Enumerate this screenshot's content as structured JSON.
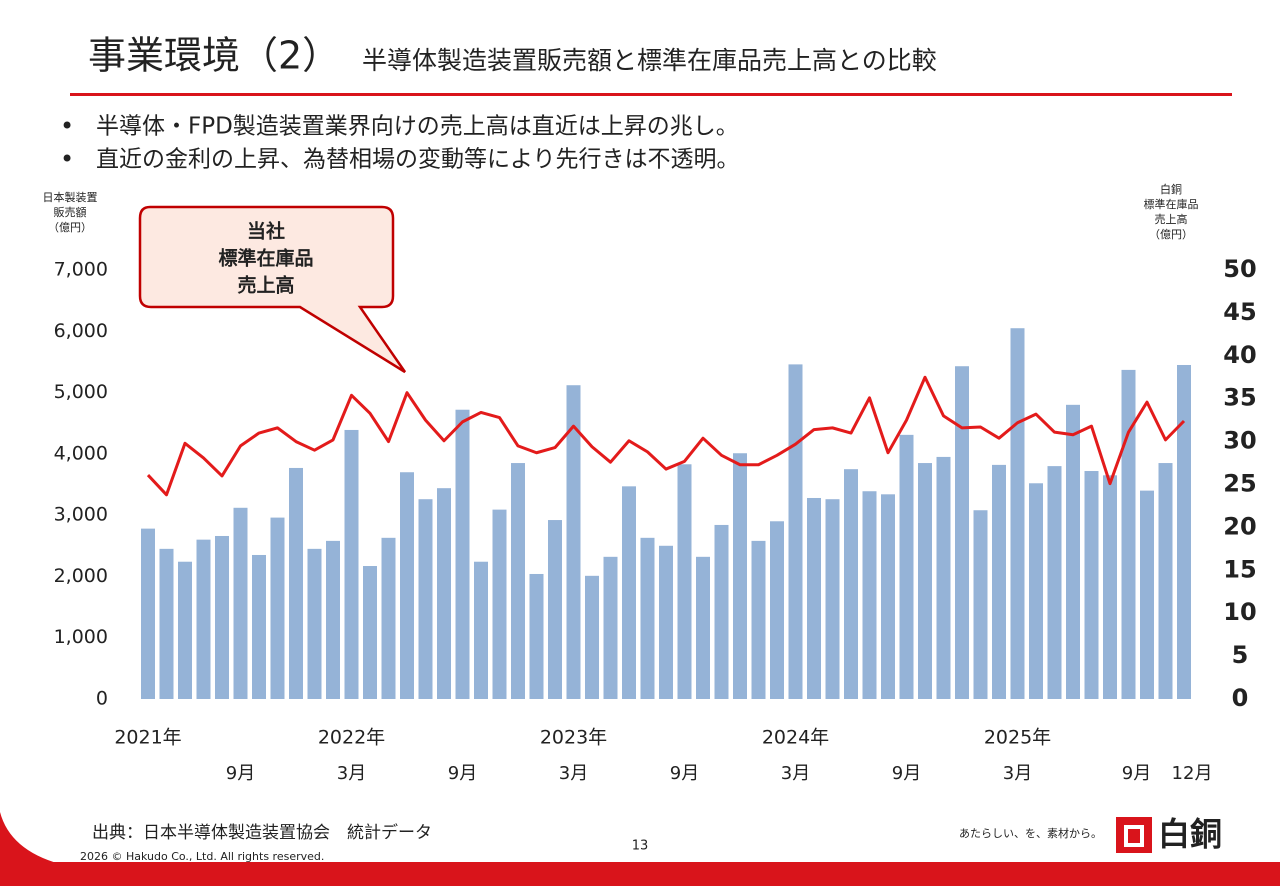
{
  "header": {
    "title": "事業環境（2）",
    "subtitle": "半導体製造装置販売額と標準在庫品売上高との比較"
  },
  "bullets": [
    "半導体・FPD製造装置業界向けの売上高は直近は上昇の兆し。",
    "直近の金利の上昇、為替相場の変動等により先行きは不透明。"
  ],
  "chart_data": {
    "type": "bar_line",
    "y_axis_label": [
      "日本製装置",
      "販売額",
      "（億円）"
    ],
    "y2_axis_label": [
      "白銅",
      "標準在庫品",
      "売上高",
      "（億円）"
    ],
    "annotation": [
      "当社",
      "標準在庫品",
      "売上高"
    ],
    "categories": [
      null,
      null,
      null,
      null,
      null,
      "9月",
      null,
      null,
      null,
      null,
      null,
      "3月",
      null,
      null,
      null,
      null,
      null,
      "9月",
      null,
      null,
      null,
      null,
      null,
      "3月",
      null,
      null,
      null,
      null,
      null,
      "9月",
      null,
      null,
      null,
      null,
      null,
      "3月",
      null,
      null,
      null,
      null,
      null,
      "9月",
      null,
      null,
      null,
      null,
      null,
      "3月",
      null,
      null,
      null,
      null,
      null,
      "9月",
      null,
      null,
      "12月"
    ],
    "category_years": [
      "2021年",
      null,
      null,
      null,
      null,
      null,
      null,
      null,
      null,
      null,
      null,
      "2022年",
      null,
      null,
      null,
      null,
      null,
      null,
      null,
      null,
      null,
      null,
      null,
      "2023年",
      null,
      null,
      null,
      null,
      null,
      null,
      null,
      null,
      null,
      null,
      null,
      "2024年",
      null,
      null,
      null,
      null,
      null,
      null,
      null,
      null,
      null,
      null,
      null,
      "2025年",
      null,
      null,
      null,
      null,
      null,
      null,
      null,
      null,
      null
    ],
    "series": [
      {
        "name": "日本製装置販売額",
        "color": "#95b3d7",
        "kind": "bar",
        "values": [
          2780,
          2450,
          2240,
          2600,
          2660,
          3120,
          2350,
          2960,
          3770,
          2450,
          2580,
          4390,
          2170,
          2630,
          3700,
          3260,
          3440,
          4720,
          2240,
          3090,
          3850,
          2040,
          2920,
          5120,
          2010,
          2320,
          3470,
          2630,
          2500,
          3830,
          2320,
          2840,
          4010,
          2580,
          2900,
          5460,
          3280,
          3260,
          3750,
          3390,
          3340,
          4310,
          3850,
          3950,
          5430,
          3080,
          3820,
          6050,
          3520,
          3800,
          4800,
          3720,
          3650,
          5370,
          3400,
          3850,
          5450
        ]
      },
      {
        "name": "標準在庫品売上高",
        "color": "#e31b1b",
        "kind": "line",
        "axis": "y2",
        "values": [
          26.1,
          23.8,
          29.8,
          28.1,
          26.0,
          29.5,
          31.0,
          31.6,
          30.0,
          29.0,
          30.2,
          35.4,
          33.3,
          30.0,
          35.7,
          32.5,
          30.1,
          32.3,
          33.4,
          32.8,
          29.5,
          28.7,
          29.3,
          31.8,
          29.4,
          27.6,
          30.1,
          28.8,
          26.8,
          27.7,
          30.4,
          28.4,
          27.3,
          27.3,
          28.4,
          29.7,
          31.4,
          31.6,
          31.0,
          35.1,
          28.7,
          32.5,
          37.5,
          33.0,
          31.6,
          31.7,
          30.4,
          32.2,
          33.2,
          31.1,
          30.8,
          31.8,
          25.1,
          31.1,
          34.6,
          30.2,
          32.4
        ]
      }
    ],
    "ylim": [
      0,
      7000
    ],
    "yticks": [
      0,
      {
        "value": 1000,
        "label": "1,000"
      },
      {
        "value": 2000,
        "label": "2,000"
      },
      {
        "value": 3000,
        "label": "3,000"
      },
      {
        "value": 4000,
        "label": "4,000"
      },
      {
        "value": 5000,
        "label": "5,000"
      },
      {
        "value": 6000,
        "label": "6,000"
      },
      {
        "value": 7000,
        "label": "7,000"
      }
    ],
    "y2lim": [
      0,
      50
    ],
    "y2ticks": [
      0,
      5,
      10,
      15,
      20,
      25,
      30,
      35,
      40,
      45,
      50
    ]
  },
  "footer": {
    "source": "出典：日本半導体製造装置協会　統計データ",
    "page": "13",
    "copyright": "2026 © Hakudo Co., Ltd. All rights reserved.",
    "tagline": "あたらしい、を、素材から。",
    "logo": "白銅"
  }
}
